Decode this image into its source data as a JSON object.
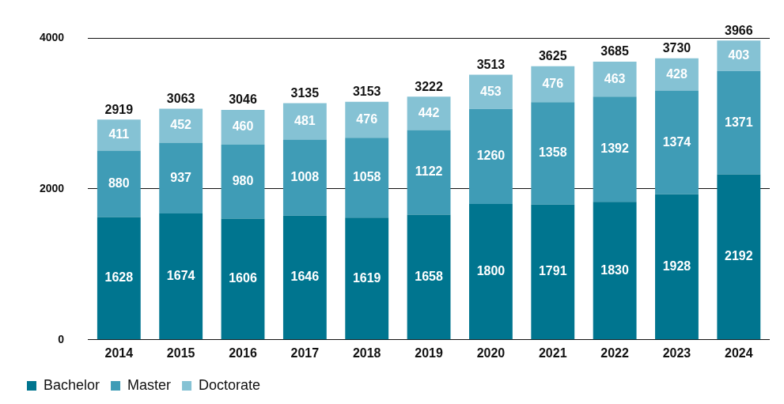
{
  "chart_data": {
    "type": "bar",
    "stacked": true,
    "data_labels": true,
    "grid": true,
    "legend": "bottom-left",
    "categories": [
      "2014",
      "2015",
      "2016",
      "2017",
      "2018",
      "2019",
      "2020",
      "2021",
      "2022",
      "2023",
      "2024"
    ],
    "series": [
      {
        "name": "Bachelor",
        "color": "#00758f",
        "values": [
          1628,
          1674,
          1606,
          1646,
          1619,
          1658,
          1800,
          1791,
          1830,
          1928,
          2192
        ]
      },
      {
        "name": "Master",
        "color": "#3f9cb6",
        "values": [
          880,
          937,
          980,
          1008,
          1058,
          1122,
          1260,
          1358,
          1392,
          1374,
          1371
        ]
      },
      {
        "name": "Doctorate",
        "color": "#85c2d4",
        "values": [
          411,
          452,
          460,
          481,
          476,
          442,
          453,
          476,
          463,
          428,
          403
        ]
      }
    ],
    "totals": [
      2919,
      3063,
      3046,
      3135,
      3153,
      3222,
      3513,
      3625,
      3685,
      3730,
      3966
    ],
    "ylim": [
      0,
      4000
    ],
    "yticks": [
      0,
      2000,
      4000
    ]
  }
}
